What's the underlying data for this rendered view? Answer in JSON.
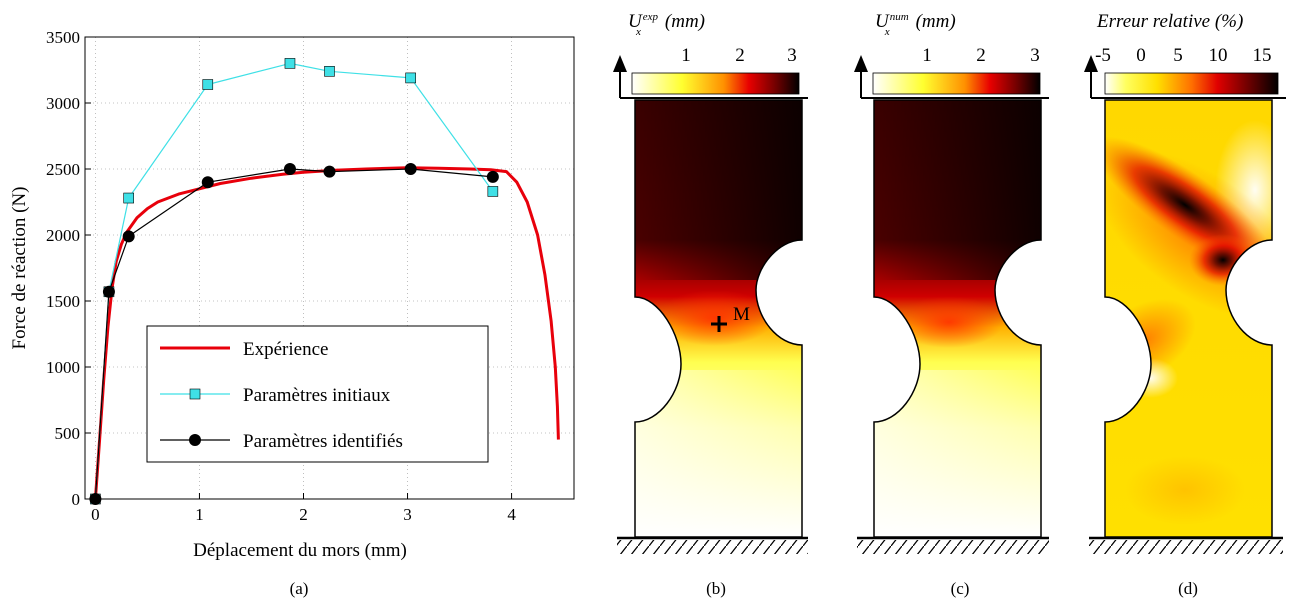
{
  "panel_labels": [
    "(a)",
    "(b)",
    "(c)",
    "(d)"
  ],
  "chart_data": [
    {
      "type": "line",
      "xlabel": "Déplacement du mors (mm)",
      "ylabel": "Force de réaction (N)",
      "xlim": [
        -0.1,
        4.6
      ],
      "ylim": [
        0,
        3500
      ],
      "xticks": [
        0,
        1,
        2,
        3,
        4
      ],
      "yticks": [
        0,
        500,
        1000,
        1500,
        2000,
        2500,
        3000,
        3500
      ],
      "grid": true,
      "legend_position": "bottom-center",
      "series": [
        {
          "name": "Expérience",
          "color": "#e8000b",
          "marker": "none",
          "x": [
            0,
            0.04,
            0.08,
            0.12,
            0.16,
            0.2,
            0.25,
            0.3,
            0.4,
            0.5,
            0.6,
            0.8,
            1.0,
            1.2,
            1.5,
            1.8,
            2.0,
            2.3,
            2.6,
            3.0,
            3.3,
            3.6,
            3.8,
            3.95,
            4.05,
            4.15,
            4.25,
            4.32,
            4.38,
            4.42,
            4.44,
            4.45
          ],
          "y": [
            0,
            450,
            900,
            1300,
            1600,
            1800,
            1930,
            2020,
            2130,
            2200,
            2250,
            2310,
            2350,
            2390,
            2430,
            2460,
            2475,
            2490,
            2500,
            2510,
            2505,
            2500,
            2495,
            2480,
            2400,
            2250,
            2000,
            1700,
            1350,
            1000,
            700,
            450
          ]
        },
        {
          "name": "Paramètres initiaux",
          "color": "#3fe0e6",
          "marker": "square",
          "x": [
            0,
            0.13,
            0.32,
            1.08,
            1.87,
            2.25,
            3.03,
            3.82
          ],
          "y": [
            0,
            1570,
            2280,
            3140,
            3300,
            3240,
            3190,
            2330
          ]
        },
        {
          "name": "Paramètres identifiés",
          "color": "#000000",
          "marker": "circle",
          "x": [
            0,
            0.13,
            0.32,
            1.08,
            1.87,
            2.25,
            3.03,
            3.82
          ],
          "y": [
            0,
            1570,
            1990,
            2400,
            2500,
            2480,
            2500,
            2440
          ]
        }
      ]
    },
    {
      "type": "heatmap",
      "title_symbol": "U",
      "title_sub": "x",
      "title_sup": "exp",
      "title_unit": "(mm)",
      "colorbar_ticks": [
        "1",
        "2",
        "3"
      ],
      "colorbar_range": [
        0,
        3.3
      ],
      "annotation": "M"
    },
    {
      "type": "heatmap",
      "title_symbol": "U",
      "title_sub": "x",
      "title_sup": "num",
      "title_unit": "(mm)",
      "colorbar_ticks": [
        "1",
        "2",
        "3"
      ],
      "colorbar_range": [
        0,
        3.3
      ]
    },
    {
      "type": "heatmap",
      "title": "Erreur relative (%)",
      "colorbar_ticks": [
        "-5",
        "0",
        "5",
        "10",
        "15"
      ],
      "colorbar_range": [
        -5.5,
        17
      ]
    }
  ]
}
